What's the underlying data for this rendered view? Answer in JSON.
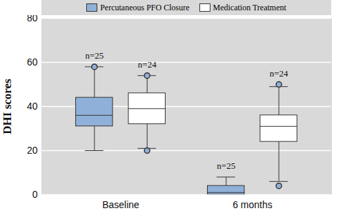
{
  "chart_data": {
    "type": "box",
    "categories": [
      "Baseline",
      "6 months"
    ],
    "y_label": "DHI scores",
    "ylim": [
      0,
      80
    ],
    "yticks": [
      0,
      20,
      40,
      60,
      80
    ],
    "grid": true,
    "legend": "top",
    "series": [
      {
        "name": "Percutaneous PFO Closure",
        "color": "#8fb0d8",
        "min": [
          20,
          0
        ],
        "q1": [
          31,
          0
        ],
        "median": [
          36,
          1
        ],
        "q3": [
          44,
          4
        ],
        "max": [
          58,
          8
        ],
        "outliers": [
          [
            58
          ],
          []
        ],
        "n_labels": [
          "n=25",
          "n=25"
        ]
      },
      {
        "name": "Medication Treatment",
        "color": "#ffffff",
        "min": [
          21,
          6
        ],
        "q1": [
          32,
          24
        ],
        "median": [
          39,
          31
        ],
        "q3": [
          46,
          36
        ],
        "max": [
          54,
          49
        ],
        "outliers": [
          [
            20,
            54
          ],
          [
            4,
            50
          ]
        ],
        "n_labels": [
          "n=24",
          "n=24"
        ]
      }
    ]
  }
}
